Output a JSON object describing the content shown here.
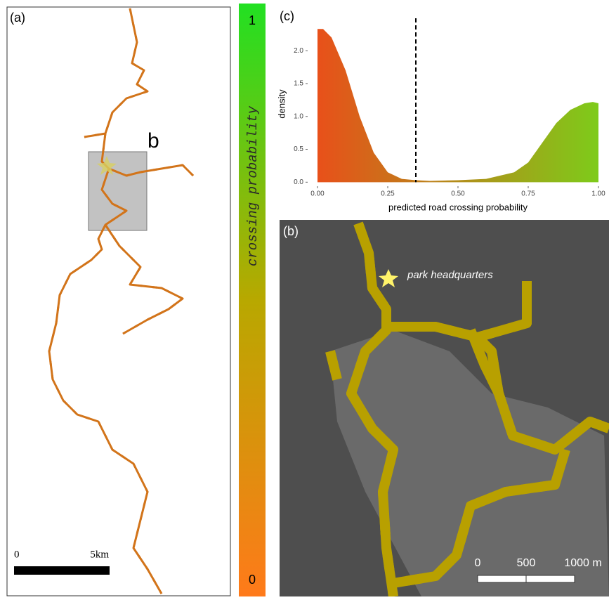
{
  "panel_a": {
    "label": "(a)",
    "inset_label": "b",
    "scale": {
      "start": "0",
      "end": "5km"
    }
  },
  "colorbar": {
    "title": "crossing probability",
    "top": "1",
    "bottom": "0"
  },
  "panel_b": {
    "label": "(b)",
    "annotation": "park headquarters",
    "scale": {
      "start": "0",
      "mid": "500",
      "end": "1000 m"
    }
  },
  "chart_data": {
    "type": "area",
    "label": "(c)",
    "x_label": "predicted road crossing probability",
    "y_label": "density",
    "x": [
      0,
      0.02,
      0.05,
      0.1,
      0.15,
      0.2,
      0.25,
      0.3,
      0.35,
      0.4,
      0.5,
      0.6,
      0.7,
      0.75,
      0.8,
      0.85,
      0.9,
      0.95,
      0.98,
      1.0
    ],
    "values": [
      2.33,
      2.33,
      2.2,
      1.7,
      1.0,
      0.45,
      0.15,
      0.05,
      0.03,
      0.02,
      0.03,
      0.05,
      0.15,
      0.3,
      0.6,
      0.9,
      1.1,
      1.2,
      1.22,
      1.2
    ],
    "vline": 0.35,
    "color_low": "#e8501a",
    "color_high": "#7ecb1a",
    "xlim": [
      0,
      1
    ],
    "ylim": [
      -0.05,
      2.45
    ],
    "xticks": [
      {
        "value": 0,
        "label": "0.00"
      },
      {
        "value": 0.25,
        "label": "0.25"
      },
      {
        "value": 0.5,
        "label": "0.50"
      },
      {
        "value": 0.75,
        "label": "0.75"
      },
      {
        "value": 1,
        "label": "1.00"
      }
    ],
    "yticks": [
      {
        "value": 0,
        "label": "0.0"
      },
      {
        "value": 0.5,
        "label": "0.5"
      },
      {
        "value": 1,
        "label": "1.0"
      },
      {
        "value": 1.5,
        "label": "1.5"
      },
      {
        "value": 2,
        "label": "2.0"
      }
    ]
  }
}
